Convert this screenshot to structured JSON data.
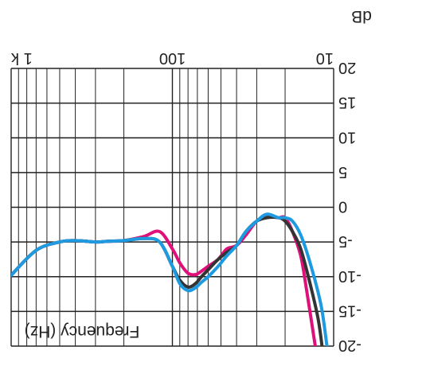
{
  "chart_data": {
    "type": "line",
    "orientation": "rotated 180 degrees (image shown upside-down)",
    "title": "",
    "xlabel": "Frequency (Hz)",
    "ylabel": "dB",
    "x_scale": "log",
    "xlim": [
      10,
      1000
    ],
    "ylim": [
      -20,
      20
    ],
    "x_tick_labels": [
      {
        "value": 10,
        "label": "10"
      },
      {
        "value": 100,
        "label": "100"
      },
      {
        "value": 1000,
        "label": "1 k"
      }
    ],
    "y_tick_labels": [
      {
        "value": -20,
        "label": "-20"
      },
      {
        "value": -15,
        "label": "-15"
      },
      {
        "value": -10,
        "label": "-10"
      },
      {
        "value": -5,
        "label": "-5"
      },
      {
        "value": 0,
        "label": "0"
      },
      {
        "value": 5,
        "label": "5"
      },
      {
        "value": 10,
        "label": "10"
      },
      {
        "value": 15,
        "label": "15"
      },
      {
        "value": 20,
        "label": "20"
      }
    ],
    "grid": true,
    "series": [
      {
        "color": "#e0107a",
        "x": [
          13,
          14.7,
          16,
          18,
          20,
          22,
          26,
          30,
          35,
          40,
          46,
          52,
          60,
          66,
          72,
          80,
          90,
          100,
          120,
          150,
          200,
          250,
          300,
          400,
          500,
          700,
          1000
        ],
        "y": [
          -20,
          -12,
          -7,
          -3.5,
          -1.5,
          -1.5,
          -1.3,
          -2,
          -4,
          -5.5,
          -6,
          -7.5,
          -8.5,
          -9.2,
          -9.7,
          -9.5,
          -8,
          -6,
          -3.5,
          -4.2,
          -4.8,
          -4.9,
          -5,
          -4.8,
          -5,
          -6.2,
          -9.8
        ]
      },
      {
        "color": "#333333",
        "x": [
          11.8,
          12.5,
          14,
          16,
          18,
          20,
          22,
          26,
          30,
          35,
          40,
          46,
          52,
          60,
          66,
          72,
          80,
          90,
          100,
          120,
          150,
          200,
          250,
          300,
          400,
          500,
          700,
          1000
        ],
        "y": [
          -20,
          -16,
          -11,
          -6,
          -3.5,
          -2,
          -1.5,
          -1.5,
          -2,
          -3.5,
          -5.5,
          -6.5,
          -7.5,
          -9,
          -10,
          -11,
          -11.5,
          -10.5,
          -8.5,
          -5,
          -4.5,
          -4.8,
          -4.9,
          -5,
          -4.8,
          -5,
          -6.2,
          -9.8
        ]
      },
      {
        "color": "#1e9be0",
        "x": [
          11,
          12,
          14,
          16,
          18,
          20,
          22,
          26,
          30,
          35,
          40,
          46,
          52,
          60,
          66,
          72,
          80,
          90,
          100,
          120,
          150,
          200,
          250,
          300,
          400,
          500,
          700,
          1000
        ],
        "y": [
          -20,
          -14,
          -8,
          -4,
          -2,
          -1.5,
          -1.5,
          -1,
          -2,
          -3.5,
          -5.5,
          -7,
          -8.5,
          -10,
          -10.8,
          -11.6,
          -12,
          -11,
          -8.5,
          -5,
          -4.5,
          -4.8,
          -4.9,
          -5,
          -4.8,
          -5,
          -6.2,
          -9.8
        ]
      }
    ]
  }
}
